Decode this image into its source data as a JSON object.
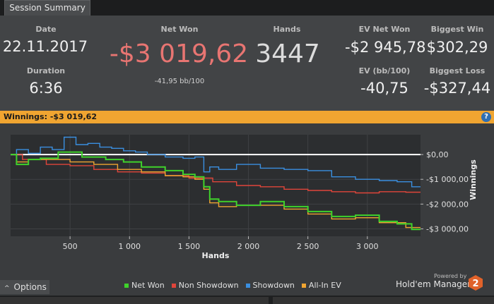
{
  "tab": {
    "label": "Session Summary"
  },
  "summary": {
    "date_label": "Date",
    "date": "22.11.2017",
    "duration_label": "Duration",
    "duration": "6:36",
    "netwon_label": "Net Won",
    "netwon": "-$3 019,62",
    "bb100": "-41,95 bb/100",
    "hands_label": "Hands",
    "hands": "3447",
    "ev_net_label": "EV Net Won",
    "ev_net": "-$2 945,78",
    "ev_bb_label": "EV (bb/100)",
    "ev_bb": "-40,75",
    "biggest_win_label": "Biggest Win",
    "biggest_win": "$302,29",
    "biggest_loss_label": "Biggest Loss",
    "biggest_loss": "-$327,44"
  },
  "winnings_bar": {
    "text": "Winnings: -$3 019,62",
    "help": "?"
  },
  "options": {
    "label": "Options",
    "arrow": "^"
  },
  "branding": {
    "powered": "Powered by",
    "name": "Hold'em Manager",
    "logo_number": "2"
  },
  "colors": {
    "net_won": "#3fd22b",
    "non_showdown": "#e0453a",
    "showdown": "#3a8fe0",
    "allin_ev": "#f0a531"
  },
  "chart_data": {
    "type": "line",
    "xlabel": "Hands",
    "ylabel": "Winnings",
    "xlim": [
      0,
      3447
    ],
    "ylim": [
      -3300,
      800
    ],
    "xticks": [
      500,
      1000,
      1500,
      2000,
      2500,
      3000
    ],
    "xtick_labels": [
      "500",
      "1 000",
      "1 500",
      "2 000",
      "2 500",
      "3 000"
    ],
    "yticks": [
      0,
      -1000,
      -2000,
      -3000
    ],
    "ytick_labels": [
      "$0,00",
      "-$1 000,00",
      "-$2 000,00",
      "-$3 000,00"
    ],
    "series": [
      {
        "name": "Net Won",
        "x": [
          0,
          100,
          200,
          300,
          500,
          700,
          900,
          1000,
          1200,
          1400,
          1500,
          1600,
          1650,
          1700,
          1800,
          2000,
          2200,
          2400,
          2600,
          2800,
          3000,
          3200,
          3300,
          3447
        ],
        "y": [
          0,
          -400,
          -200,
          -150,
          100,
          -100,
          -200,
          -300,
          -500,
          -650,
          -800,
          -900,
          -1300,
          -1800,
          -1900,
          -2050,
          -1900,
          -2100,
          -2300,
          -2500,
          -2450,
          -2700,
          -2800,
          -3020
        ]
      },
      {
        "name": "Non Showdown",
        "x": [
          0,
          200,
          400,
          600,
          800,
          1000,
          1200,
          1400,
          1600,
          1800,
          2000,
          2200,
          2400,
          2600,
          2800,
          3000,
          3200,
          3447
        ],
        "y": [
          0,
          -200,
          -400,
          -450,
          -600,
          -700,
          -750,
          -850,
          -950,
          -1100,
          -1250,
          -1300,
          -1400,
          -1450,
          -1500,
          -1550,
          -1500,
          -1520
        ]
      },
      {
        "name": "Showdown",
        "x": [
          0,
          100,
          200,
          300,
          400,
          500,
          600,
          700,
          800,
          900,
          1000,
          1100,
          1200,
          1400,
          1500,
          1600,
          1650,
          1700,
          1800,
          2000,
          2200,
          2400,
          2600,
          2800,
          3000,
          3200,
          3300,
          3447
        ],
        "y": [
          0,
          200,
          50,
          300,
          200,
          700,
          400,
          450,
          300,
          250,
          150,
          100,
          0,
          -100,
          -150,
          -100,
          -700,
          -500,
          -600,
          -400,
          -550,
          -600,
          -650,
          -900,
          -1000,
          -1050,
          -1100,
          -1300
        ]
      },
      {
        "name": "All-In EV",
        "x": [
          0,
          100,
          200,
          400,
          600,
          800,
          1000,
          1200,
          1400,
          1500,
          1600,
          1650,
          1700,
          1800,
          2000,
          2200,
          2400,
          2600,
          2800,
          3000,
          3200,
          3447
        ],
        "y": [
          0,
          -300,
          -200,
          -200,
          -300,
          -400,
          -600,
          -700,
          -850,
          -900,
          -1000,
          -1400,
          -1950,
          -2100,
          -2050,
          -2050,
          -2200,
          -2400,
          -2600,
          -2550,
          -2750,
          -2946
        ]
      }
    ]
  }
}
